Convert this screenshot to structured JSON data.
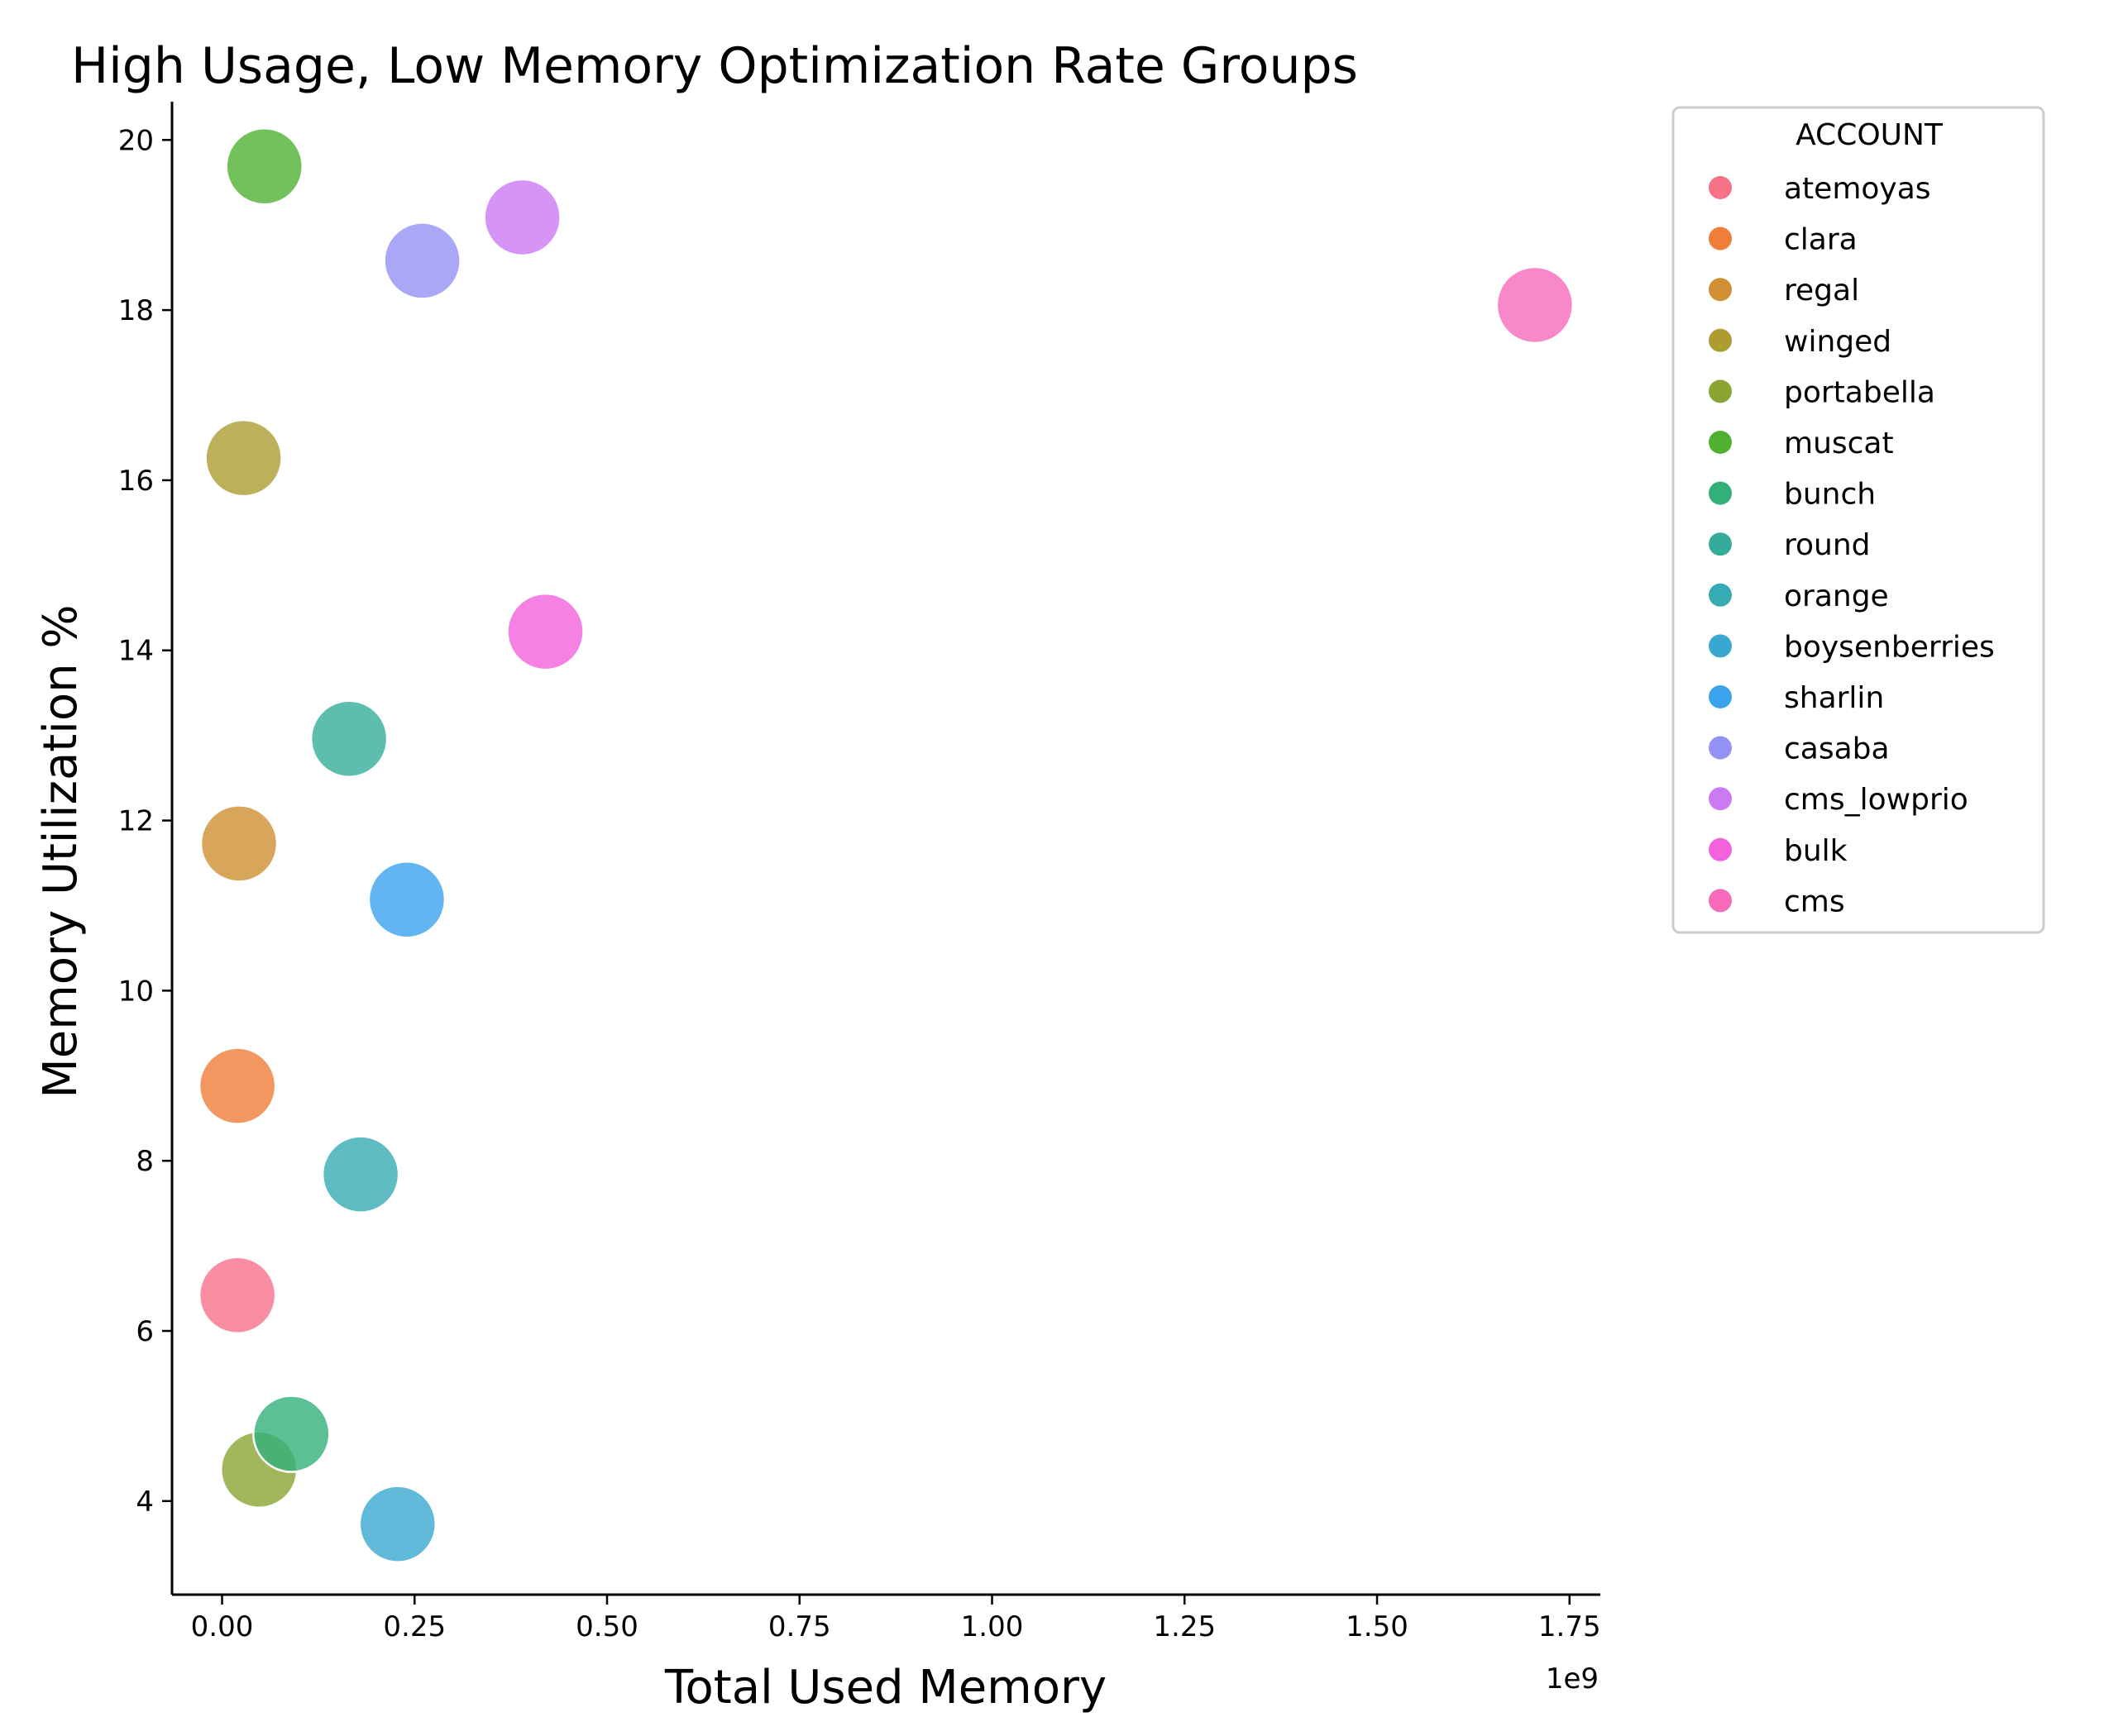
{
  "chart_data": {
    "type": "scatter",
    "title": "High Usage, Low Memory Optimization Rate Groups",
    "xlabel": "Total Used Memory",
    "ylabel": "Memory Utilization %",
    "x_offset_label": "1e9",
    "xlim": [
      -0.065,
      1.79
    ],
    "ylim": [
      2.9,
      20.45
    ],
    "x_ticks": [
      0.0,
      0.25,
      0.5,
      0.75,
      1.0,
      1.25,
      1.5,
      1.75
    ],
    "x_tick_labels": [
      "0.00",
      "0.25",
      "0.50",
      "0.75",
      "1.00",
      "1.25",
      "1.50",
      "1.75"
    ],
    "y_ticks": [
      4,
      6,
      8,
      10,
      12,
      14,
      16,
      18,
      20
    ],
    "y_tick_labels": [
      "4",
      "6",
      "8",
      "10",
      "12",
      "14",
      "16",
      "18",
      "20"
    ],
    "grid": false,
    "legend": {
      "title": "ACCOUNT",
      "placement": "outside-right-top"
    },
    "series": [
      {
        "name": "atemoyas",
        "color": "#f77189",
        "x": 0.02,
        "y": 6.42
      },
      {
        "name": "clara",
        "color": "#f07d39",
        "x": 0.02,
        "y": 8.88
      },
      {
        "name": "regal",
        "color": "#ce9032",
        "x": 0.022,
        "y": 11.73
      },
      {
        "name": "winged",
        "color": "#ad9c32",
        "x": 0.028,
        "y": 16.26
      },
      {
        "name": "portabella",
        "color": "#8ba432",
        "x": 0.048,
        "y": 4.37
      },
      {
        "name": "muscat",
        "color": "#50b131",
        "x": 0.055,
        "y": 19.69
      },
      {
        "name": "bunch",
        "color": "#33b07a",
        "x": 0.09,
        "y": 4.79
      },
      {
        "name": "round",
        "color": "#35ac9a",
        "x": 0.165,
        "y": 12.96
      },
      {
        "name": "orange",
        "color": "#37abb4",
        "x": 0.18,
        "y": 7.84
      },
      {
        "name": "boysenberries",
        "color": "#39a7d0",
        "x": 0.228,
        "y": 3.73
      },
      {
        "name": "sharlin",
        "color": "#3ba3ec",
        "x": 0.24,
        "y": 11.07
      },
      {
        "name": "casaba",
        "color": "#9491f4",
        "x": 0.26,
        "y": 18.58
      },
      {
        "name": "cms_lowprio",
        "color": "#cc7af4",
        "x": 0.39,
        "y": 19.09
      },
      {
        "name": "bulk",
        "color": "#f461dd",
        "x": 0.42,
        "y": 14.22
      },
      {
        "name": "cms",
        "color": "#f66ab9",
        "x": 1.705,
        "y": 18.06
      }
    ]
  }
}
